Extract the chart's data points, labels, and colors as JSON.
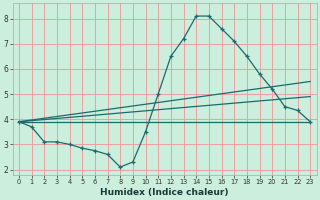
{
  "xlabel": "Humidex (Indice chaleur)",
  "background_color": "#cceedd",
  "grid_color": "#e8a0a0",
  "line_color": "#1a6b6e",
  "xlim": [
    -0.5,
    23.5
  ],
  "ylim": [
    1.8,
    8.6
  ],
  "xticks": [
    0,
    1,
    2,
    3,
    4,
    5,
    6,
    7,
    8,
    9,
    10,
    11,
    12,
    13,
    14,
    15,
    16,
    17,
    18,
    19,
    20,
    21,
    22,
    23
  ],
  "yticks": [
    2,
    3,
    4,
    5,
    6,
    7,
    8
  ],
  "lines": [
    {
      "x": [
        0,
        1,
        2,
        3,
        4,
        5,
        6,
        7,
        8,
        9,
        10,
        11,
        12,
        13,
        14,
        15,
        16,
        17,
        18,
        19,
        20,
        21,
        22,
        23
      ],
      "y": [
        3.9,
        3.7,
        3.1,
        3.1,
        3.0,
        2.85,
        2.75,
        2.6,
        2.1,
        2.3,
        3.5,
        5.0,
        6.5,
        7.2,
        8.1,
        8.1,
        7.6,
        7.1,
        6.5,
        5.8,
        5.2,
        4.5,
        4.35,
        3.9
      ],
      "marker": true
    },
    {
      "x": [
        0,
        23
      ],
      "y": [
        3.9,
        3.9
      ],
      "marker": false
    },
    {
      "x": [
        0,
        23
      ],
      "y": [
        3.9,
        4.9
      ],
      "marker": false
    },
    {
      "x": [
        0,
        23
      ],
      "y": [
        3.9,
        5.5
      ],
      "marker": false
    }
  ]
}
